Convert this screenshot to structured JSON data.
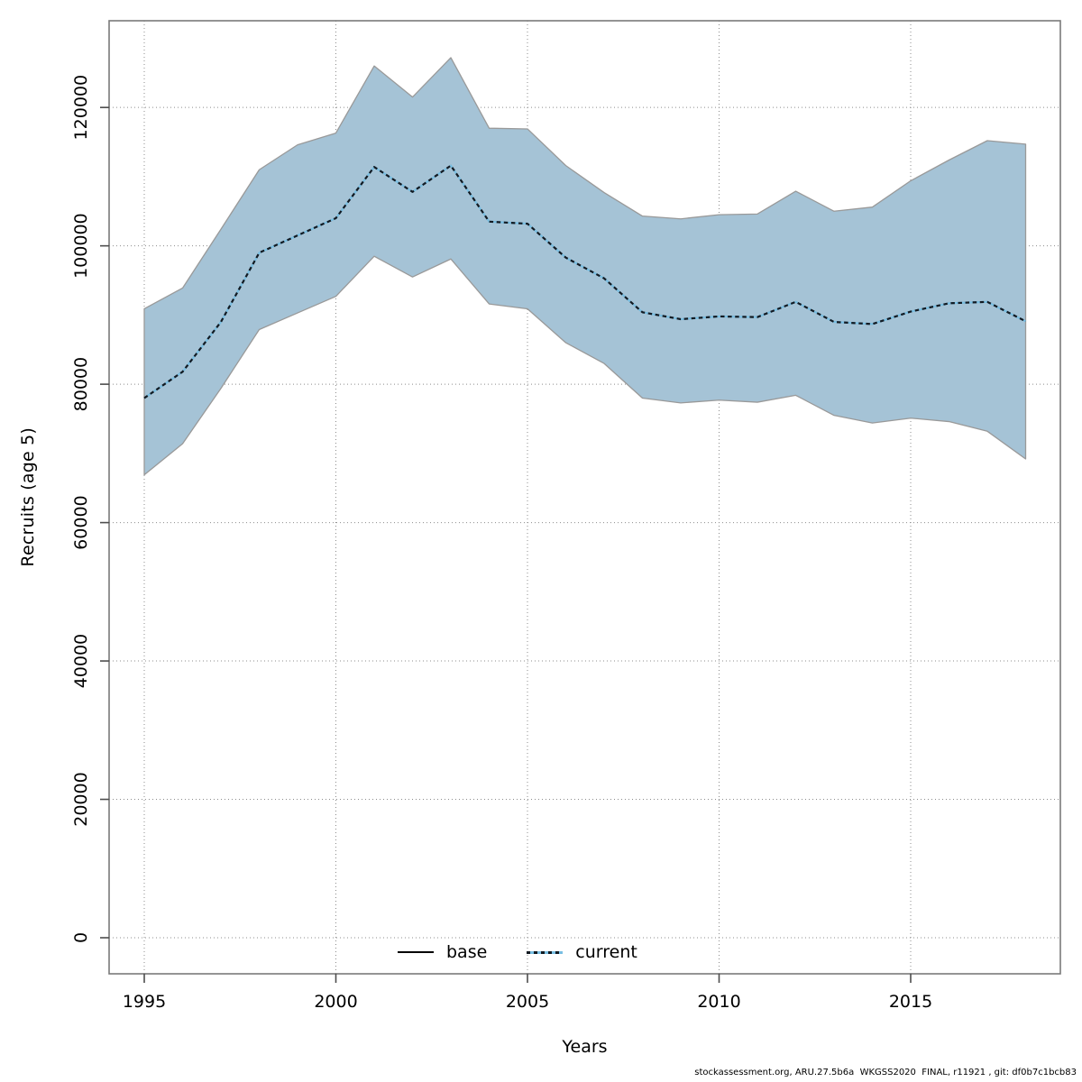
{
  "figure": {
    "footer": "stockassessment.org, ARU.27.5b6a  WKGSS2020  FINAL, r11921 , git: df0b7c1bcb83"
  },
  "colors": {
    "band_fill": "#a5c3d6",
    "band_edge": "#999999",
    "base_line": "#000000",
    "current_line": "#79bfe3",
    "dash_overlay": "#121a22",
    "grid": "#8c8c8c",
    "axis_box": "#7a7a7a",
    "tick": "#4d4d4d",
    "text": "#000000"
  },
  "chart_data": {
    "type": "line",
    "title": "",
    "xlabel": "Years",
    "ylabel": "Recruits (age 5)",
    "grid": "dotted",
    "legend_position": "bottom-center-inside",
    "legend": [
      {
        "label": "base",
        "style": "solid-black"
      },
      {
        "label": "current",
        "style": "dotted-blue"
      }
    ],
    "x": [
      1995,
      1996,
      1997,
      1998,
      1999,
      2000,
      2001,
      2002,
      2003,
      2004,
      2005,
      2006,
      2007,
      2008,
      2009,
      2010,
      2011,
      2012,
      2013,
      2014,
      2015,
      2016,
      2017,
      2018
    ],
    "series": [
      {
        "name": "base",
        "values": [
          78000,
          81800,
          89000,
          99000,
          101500,
          104000,
          111400,
          107800,
          111600,
          103500,
          103200,
          98300,
          95300,
          90400,
          89400,
          89800,
          89700,
          91900,
          89000,
          88700,
          90500,
          91700,
          91900,
          89100
        ]
      },
      {
        "name": "current",
        "values": [
          78000,
          81800,
          89000,
          99000,
          101500,
          104000,
          111400,
          107800,
          111600,
          103500,
          103200,
          98300,
          95300,
          90400,
          89400,
          89800,
          89700,
          91900,
          89000,
          88700,
          90500,
          91700,
          91900,
          89100
        ]
      }
    ],
    "band": {
      "name": "confidence-band",
      "low": [
        66900,
        71400,
        79400,
        87900,
        90300,
        92700,
        98500,
        95500,
        98100,
        91600,
        90900,
        86000,
        83000,
        78000,
        77300,
        77700,
        77400,
        78400,
        75500,
        74400,
        75100,
        74600,
        73200,
        69200
      ],
      "high": [
        90900,
        93900,
        102400,
        111000,
        114600,
        116300,
        126000,
        121500,
        127200,
        117000,
        116900,
        111600,
        107700,
        104300,
        103900,
        104500,
        104600,
        107900,
        105000,
        105600,
        109400,
        112400,
        115200,
        114700
      ]
    },
    "xticks": [
      1995,
      2000,
      2005,
      2010,
      2015
    ],
    "xtick_labels": [
      "1995",
      "2000",
      "2005",
      "2010",
      "2015"
    ],
    "yticks": [
      0,
      20000,
      40000,
      60000,
      80000,
      100000,
      120000
    ],
    "ytick_labels": [
      "0",
      "20000",
      "40000",
      "60000",
      "80000",
      "100000",
      "120000"
    ],
    "xlim": [
      1994.08,
      2018.92
    ],
    "ylim": [
      -5100,
      132400
    ]
  }
}
